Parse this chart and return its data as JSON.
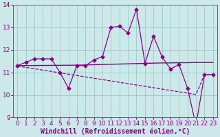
{
  "xlabel": "Windchill (Refroidissement éolien,°C)",
  "background_color": "#cce8e8",
  "line_color": "#880088",
  "grid_color": "#99cccc",
  "ylim": [
    9,
    14
  ],
  "xlim": [
    -0.5,
    23.5
  ],
  "yticks": [
    9,
    10,
    11,
    12,
    13,
    14
  ],
  "xticks": [
    0,
    1,
    2,
    3,
    4,
    5,
    6,
    7,
    8,
    9,
    10,
    11,
    12,
    13,
    14,
    15,
    16,
    17,
    18,
    19,
    20,
    21,
    22,
    23
  ],
  "series_jagged_x": [
    0,
    1,
    2,
    3,
    4,
    5,
    6,
    7,
    8,
    9,
    10,
    11,
    12,
    13,
    14,
    15,
    16,
    17,
    18,
    19,
    20,
    21,
    22,
    23
  ],
  "series_jagged_y": [
    11.3,
    11.45,
    11.6,
    11.6,
    11.6,
    11.0,
    10.3,
    11.3,
    11.3,
    11.55,
    11.7,
    13.0,
    13.05,
    12.75,
    13.8,
    11.4,
    12.6,
    11.7,
    11.15,
    11.35,
    10.3,
    8.65,
    10.9,
    10.9
  ],
  "series_flat_x": [
    0,
    7,
    8,
    9,
    10,
    11,
    12,
    13,
    14,
    15,
    16,
    17,
    18,
    19,
    20,
    21,
    22,
    23
  ],
  "series_flat_y": [
    11.3,
    11.32,
    11.33,
    11.34,
    11.35,
    11.36,
    11.37,
    11.38,
    11.39,
    11.4,
    11.41,
    11.42,
    11.42,
    11.43,
    11.43,
    11.44,
    11.44,
    11.44
  ],
  "series_decline_x": [
    0,
    1,
    2,
    3,
    4,
    5,
    6,
    7,
    8,
    9,
    10,
    11,
    12,
    13,
    14,
    15,
    16,
    17,
    18,
    19,
    20,
    21,
    22,
    23
  ],
  "series_decline_y": [
    11.28,
    11.22,
    11.16,
    11.1,
    11.04,
    10.98,
    10.92,
    10.86,
    10.8,
    10.74,
    10.68,
    10.62,
    10.56,
    10.5,
    10.44,
    10.38,
    10.32,
    10.26,
    10.2,
    10.14,
    10.08,
    10.02,
    10.9,
    10.9
  ],
  "ticklabel_fontsize": 6.5,
  "xlabel_fontsize": 7.0
}
